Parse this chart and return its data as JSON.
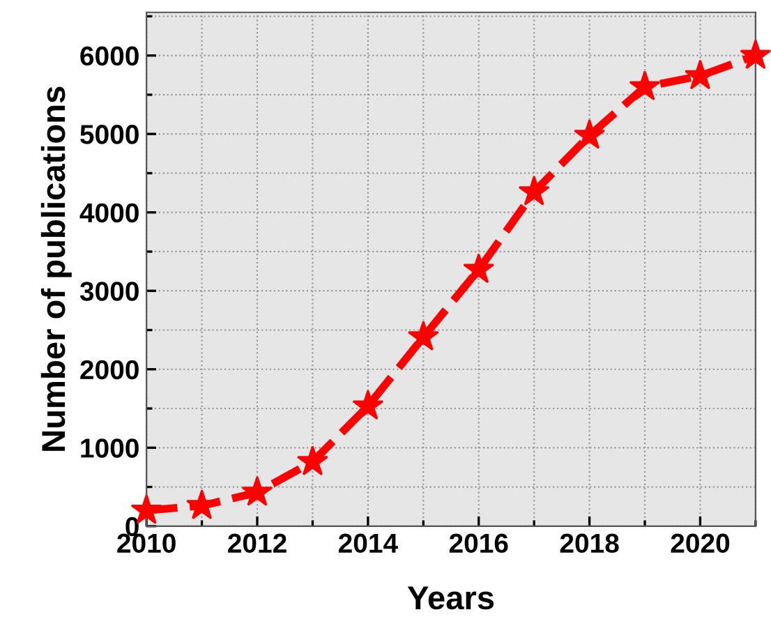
{
  "chart_data": {
    "type": "line",
    "xlabel": "Years",
    "ylabel": "Number of publications",
    "x": [
      2010,
      2011,
      2012,
      2013,
      2014,
      2015,
      2016,
      2017,
      2018,
      2019,
      2020,
      2021
    ],
    "series": [
      {
        "color": "#ff0000",
        "values": [
          200,
          260,
          430,
          820,
          1530,
          2410,
          3270,
          4260,
          4980,
          5600,
          5740,
          6000
        ]
      }
    ],
    "xlim": [
      2010,
      2021
    ],
    "xticks": [
      2010,
      2012,
      2014,
      2016,
      2018,
      2020
    ],
    "ylim": [
      0,
      6550
    ],
    "yticks": [
      0,
      1000,
      2000,
      3000,
      4000,
      5000,
      6000
    ],
    "grid": true,
    "marker": "star",
    "line_style": "dashed"
  }
}
